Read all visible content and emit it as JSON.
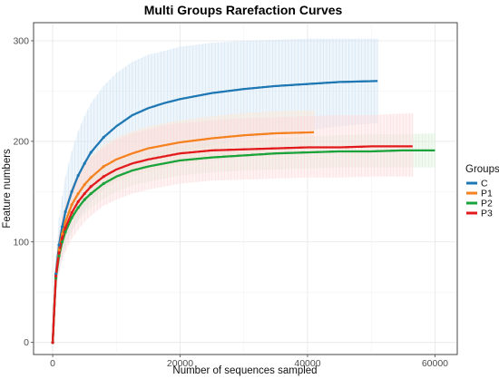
{
  "chart_data": {
    "type": "line",
    "title": "Multi Groups Rarefaction Curves",
    "xlabel": "Number of sequences sampled",
    "ylabel": "Feature numbers",
    "xlim": [
      -3000,
      63500
    ],
    "ylim": [
      -12,
      318
    ],
    "x_ticks": [
      0,
      20000,
      40000,
      60000
    ],
    "x_tick_labels": [
      "0",
      "20000",
      "40000",
      "60000"
    ],
    "y_ticks": [
      0,
      100,
      200,
      300
    ],
    "y_tick_labels": [
      "0",
      "100",
      "200",
      "300"
    ],
    "grid": true,
    "legend": {
      "title": "Groups",
      "position": "right"
    },
    "series": [
      {
        "name": "C",
        "color": "#1f78b4",
        "band_color": "#cfe3f3",
        "x": [
          0,
          500,
          1000,
          1500,
          2000,
          3000,
          4000,
          5000,
          6000,
          8000,
          10000,
          12500,
          15000,
          17500,
          20000,
          25000,
          30000,
          35000,
          40000,
          45000,
          51000
        ],
        "y": [
          0,
          68,
          97,
          115,
          130,
          150,
          166,
          178,
          189,
          204,
          215,
          226,
          233,
          238,
          242,
          248,
          252,
          255,
          257,
          259,
          260
        ],
        "lower": [
          0,
          50,
          70,
          85,
          95,
          110,
          122,
          132,
          140,
          153,
          162,
          172,
          179,
          184,
          189,
          196,
          202,
          207,
          211,
          215,
          218
        ],
        "upper": [
          0,
          86,
          124,
          145,
          165,
          190,
          210,
          225,
          238,
          255,
          268,
          279,
          286,
          290,
          294,
          298,
          300,
          301,
          302,
          302,
          302
        ]
      },
      {
        "name": "P1",
        "color": "#f58220",
        "band_color": "#fde6d0",
        "x": [
          0,
          500,
          1000,
          1500,
          2000,
          3000,
          4000,
          5000,
          6000,
          8000,
          10000,
          12500,
          15000,
          17500,
          20000,
          25000,
          30000,
          35000,
          41000
        ],
        "y": [
          0,
          66,
          92,
          108,
          120,
          137,
          148,
          157,
          164,
          175,
          182,
          188,
          193,
          196,
          199,
          203,
          206,
          208,
          209
        ],
        "lower": [
          0,
          55,
          78,
          92,
          103,
          118,
          128,
          136,
          143,
          153,
          160,
          166,
          170,
          174,
          177,
          181,
          184,
          186,
          188
        ],
        "upper": [
          0,
          77,
          106,
          124,
          137,
          156,
          168,
          178,
          185,
          197,
          204,
          210,
          215,
          218,
          221,
          225,
          228,
          230,
          231
        ]
      },
      {
        "name": "P2",
        "color": "#1aa33a",
        "band_color": "#d8efd8",
        "x": [
          0,
          500,
          1000,
          1500,
          2000,
          3000,
          4000,
          5000,
          6000,
          8000,
          10000,
          12500,
          15000,
          17500,
          20000,
          25000,
          30000,
          35000,
          40000,
          45000,
          50000,
          55000,
          60000
        ],
        "y": [
          0,
          64,
          86,
          100,
          110,
          124,
          134,
          142,
          148,
          158,
          165,
          171,
          175,
          178,
          181,
          184,
          186,
          188,
          189,
          190,
          190,
          191,
          191
        ],
        "lower": [
          0,
          56,
          76,
          89,
          98,
          111,
          121,
          128,
          134,
          143,
          150,
          156,
          160,
          163,
          166,
          169,
          171,
          172,
          173,
          174,
          174,
          174,
          174
        ],
        "upper": [
          0,
          72,
          96,
          111,
          122,
          137,
          147,
          156,
          162,
          173,
          180,
          186,
          190,
          193,
          196,
          199,
          201,
          203,
          205,
          206,
          207,
          207,
          208
        ]
      },
      {
        "name": "P3",
        "color": "#e31a1c",
        "band_color": "#fbd9da",
        "x": [
          0,
          500,
          1000,
          1500,
          2000,
          3000,
          4000,
          5000,
          6000,
          8000,
          10000,
          12500,
          15000,
          17500,
          20000,
          25000,
          30000,
          35000,
          40000,
          45000,
          50000,
          56500
        ],
        "y": [
          0,
          66,
          89,
          104,
          114,
          129,
          140,
          148,
          155,
          165,
          172,
          178,
          182,
          185,
          188,
          191,
          192,
          193,
          194,
          194,
          195,
          195
        ],
        "lower": [
          0,
          52,
          70,
          82,
          90,
          103,
          112,
          120,
          126,
          136,
          142,
          148,
          152,
          155,
          158,
          161,
          162,
          163,
          164,
          164,
          165,
          165
        ],
        "upper": [
          0,
          80,
          108,
          126,
          138,
          155,
          168,
          177,
          184,
          194,
          202,
          208,
          212,
          216,
          218,
          221,
          223,
          224,
          225,
          226,
          226,
          228
        ]
      }
    ]
  }
}
